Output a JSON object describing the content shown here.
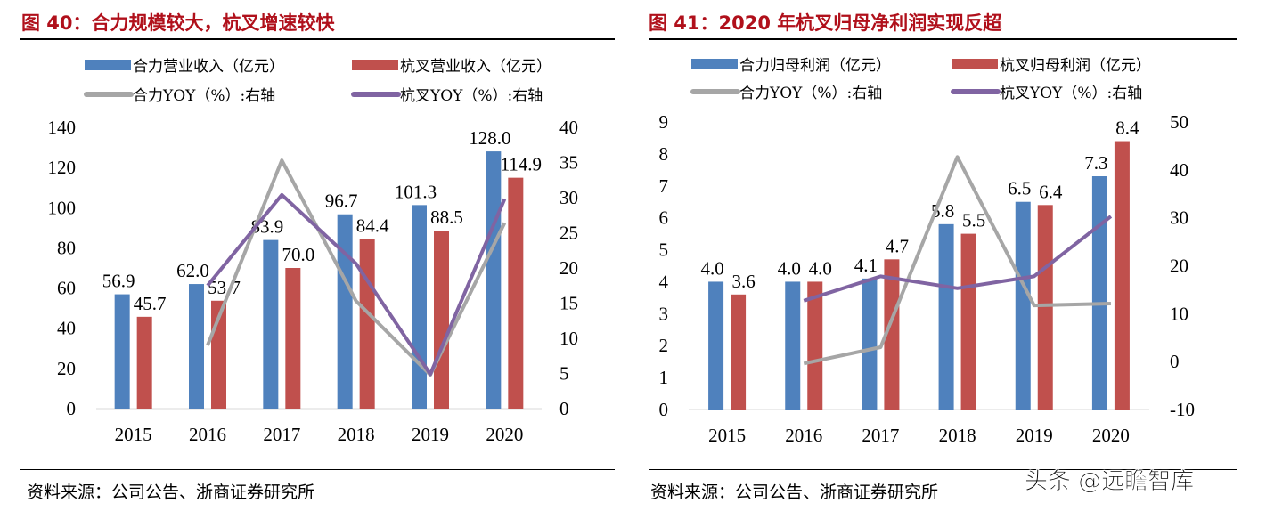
{
  "chart_data": [
    {
      "type": "bar+line",
      "title": "图 40：合力规模较大，杭叉增速较快",
      "categories": [
        "2015",
        "2016",
        "2017",
        "2018",
        "2019",
        "2020"
      ],
      "series": [
        {
          "name": "合力营业收入（亿元）",
          "kind": "bar",
          "axis": "left",
          "color": "#4f81bd",
          "values": [
            56.9,
            62.0,
            83.9,
            96.7,
            101.3,
            128.0
          ]
        },
        {
          "name": "杭叉营业收入（亿元）",
          "kind": "bar",
          "axis": "left",
          "color": "#c0504d",
          "values": [
            45.7,
            53.7,
            70.0,
            84.4,
            88.5,
            114.9
          ]
        },
        {
          "name": "合力YOY（%）:右轴",
          "kind": "line",
          "axis": "right",
          "color": "#a6a6a6",
          "values": [
            null,
            9.0,
            35.3,
            15.3,
            4.8,
            26.4
          ]
        },
        {
          "name": "杭叉YOY（%）:右轴",
          "kind": "line",
          "axis": "right",
          "color": "#8064a2",
          "values": [
            null,
            17.5,
            30.4,
            20.6,
            4.9,
            29.8
          ]
        }
      ],
      "left_ylim": [
        0,
        140
      ],
      "left_ticks": [
        "0",
        "20",
        "40",
        "60",
        "80",
        "100",
        "120",
        "140"
      ],
      "right_ylim": [
        0,
        40
      ],
      "right_ticks": [
        "0",
        "5",
        "10",
        "15",
        "20",
        "25",
        "30",
        "35",
        "40"
      ],
      "source": "资料来源：公司公告、浙商证券研究所",
      "grid": false,
      "legend": "top"
    },
    {
      "type": "bar+line",
      "title": "图 41：2020 年杭叉归母净利润实现反超",
      "categories": [
        "2015",
        "2016",
        "2017",
        "2018",
        "2019",
        "2020"
      ],
      "series": [
        {
          "name": "合力归母利润（亿元）",
          "kind": "bar",
          "axis": "left",
          "color": "#4f81bd",
          "values": [
            4.0,
            4.0,
            4.1,
            5.8,
            6.5,
            7.3
          ]
        },
        {
          "name": "杭叉归母利润（亿元）",
          "kind": "bar",
          "axis": "left",
          "color": "#c0504d",
          "values": [
            3.6,
            4.0,
            4.7,
            5.5,
            6.4,
            8.4
          ]
        },
        {
          "name": "合力YOY（%）:右轴",
          "kind": "line",
          "axis": "right",
          "color": "#a6a6a6",
          "values": [
            null,
            -0.4,
            3.0,
            42.7,
            11.7,
            12.1
          ]
        },
        {
          "name": "杭叉YOY（%）:右轴",
          "kind": "line",
          "axis": "right",
          "color": "#8064a2",
          "values": [
            null,
            12.7,
            17.8,
            15.3,
            17.8,
            30.3
          ]
        }
      ],
      "left_ylim": [
        0,
        9
      ],
      "left_ticks": [
        "0",
        "1",
        "2",
        "3",
        "4",
        "5",
        "6",
        "7",
        "8",
        "9"
      ],
      "right_ylim": [
        -10,
        50
      ],
      "right_ticks": [
        "-10",
        "0",
        "10",
        "20",
        "30",
        "40",
        "50"
      ],
      "source": "资料来源：公司公告、浙商证券研究所",
      "grid": false,
      "legend": "top"
    }
  ],
  "watermark": "头条 @远瞻智库"
}
